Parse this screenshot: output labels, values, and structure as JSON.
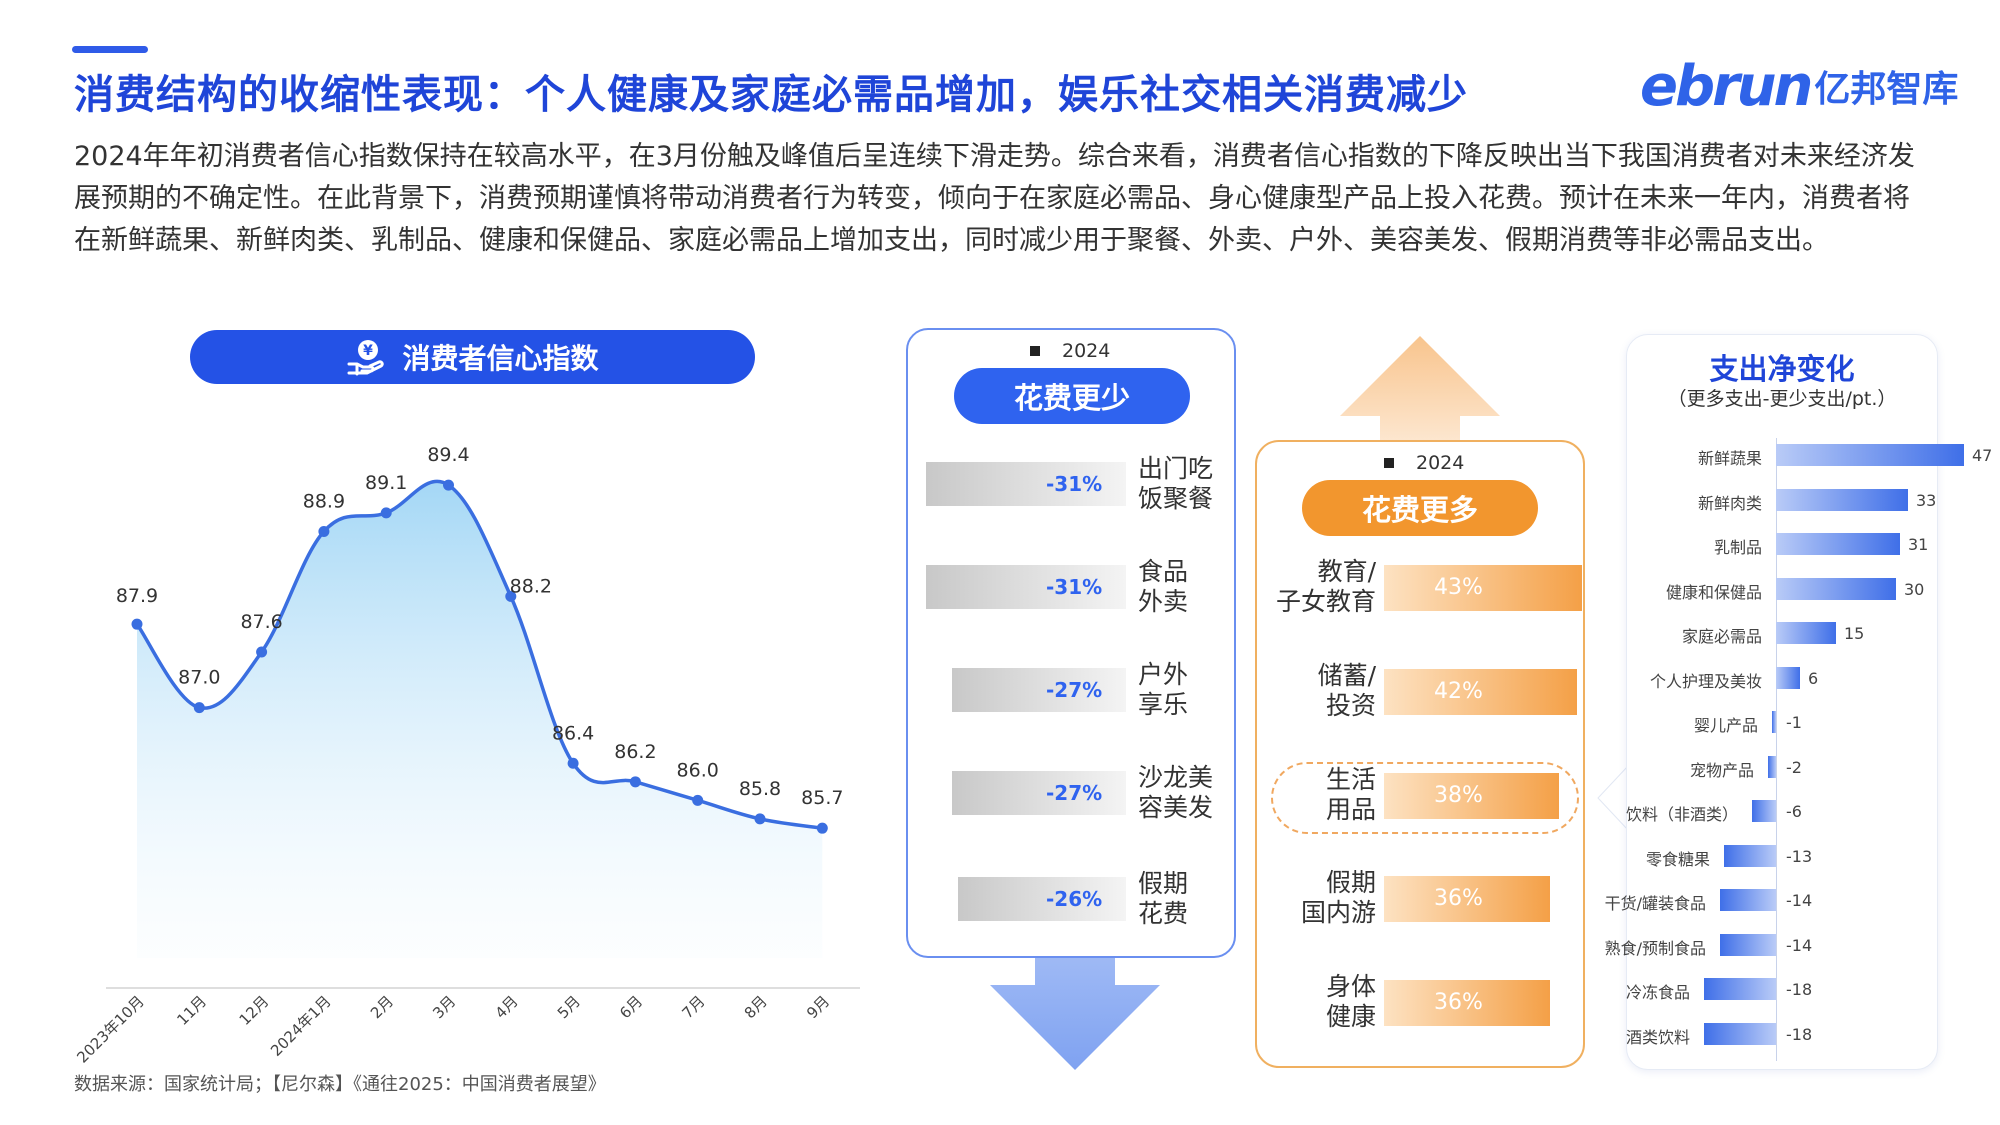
{
  "header": {
    "title": "消费结构的收缩性表现：个人健康及家庭必需品增加，娱乐社交相关消费减少",
    "logo_latin": "ebrun",
    "logo_cn": "亿邦智库"
  },
  "intro": "2024年年初消费者信心指数保持在较高水平，在3月份触及峰值后呈连续下滑走势。综合来看，消费者信心指数的下降反映出当下我国消费者对未来经济发展预期的不确定性。在此背景下，消费预期谨慎将带动消费者行为转变，倾向于在家庭必需品、身心健康型产品上投入花费。预计在未来一年内，消费者将在新鲜蔬果、新鲜肉类、乳制品、健康和保健品、家庭必需品上增加支出，同时减少用于聚餐、外卖、户外、美容美发、假期消费等非必需品支出。",
  "source": "数据来源：国家统计局；【尼尔森】《通往2025：中国消费者展望》",
  "colors": {
    "brand": "#2452e6",
    "line": "#3a6ee0",
    "orange": "#f2962e"
  },
  "chart_data": [
    {
      "type": "area",
      "title": "消费者信心指数",
      "categories": [
        "2023年10月",
        "11月",
        "12月",
        "2024年1月",
        "2月",
        "3月",
        "4月",
        "5月",
        "6月",
        "7月",
        "8月",
        "9月"
      ],
      "series": [
        {
          "values": [
            87.9,
            87.0,
            87.6,
            88.9,
            89.1,
            89.4,
            88.2,
            86.4,
            86.2,
            86.0,
            85.8,
            85.7
          ]
        }
      ],
      "ylim": [
        84.3,
        89.8
      ],
      "grid": false
    },
    {
      "type": "bar",
      "title": "花费更少",
      "legend": "2024",
      "categories": [
        "出门吃饭聚餐",
        "食品外卖",
        "户外享乐",
        "沙龙美容美发",
        "假期花费"
      ],
      "labels": [
        [
          "出门吃",
          "饭聚餐"
        ],
        [
          "食品",
          "外卖"
        ],
        [
          "户外",
          "享乐"
        ],
        [
          "沙龙美",
          "容美发"
        ],
        [
          "假期",
          "花费"
        ]
      ],
      "values": [
        -31,
        -31,
        -27,
        -27,
        -26
      ],
      "value_labels": [
        "-31%",
        "-31%",
        "-27%",
        "-27%",
        "-26%"
      ]
    },
    {
      "type": "bar",
      "title": "花费更多",
      "legend": "2024",
      "categories": [
        "教育/子女教育",
        "储蓄/投资",
        "生活用品",
        "假期国内游",
        "身体健康"
      ],
      "labels": [
        [
          "教育/",
          "子女教育"
        ],
        [
          "储蓄/",
          "投资"
        ],
        [
          "生活",
          "用品"
        ],
        [
          "假期",
          "国内游"
        ],
        [
          "身体",
          "健康"
        ]
      ],
      "values": [
        43,
        42,
        38,
        36,
        36
      ],
      "value_labels": [
        "43%",
        "42%",
        "38%",
        "36%",
        "36%"
      ],
      "highlight": "生活用品"
    },
    {
      "type": "bar",
      "title": "支出净变化",
      "subtitle": "（更多支出-更少支出/pt.）",
      "categories": [
        "新鲜蔬果",
        "新鲜肉类",
        "乳制品",
        "健康和保健品",
        "家庭必需品",
        "个人护理及美妆",
        "婴儿产品",
        "宠物产品",
        "饮料（非酒类）",
        "零食糖果",
        "干货/罐装食品",
        "熟食/预制食品",
        "冷冻食品",
        "酒类饮料"
      ],
      "values": [
        47,
        33,
        31,
        30,
        15,
        6,
        -1,
        -2,
        -6,
        -13,
        -14,
        -14,
        -18,
        -18
      ]
    }
  ]
}
